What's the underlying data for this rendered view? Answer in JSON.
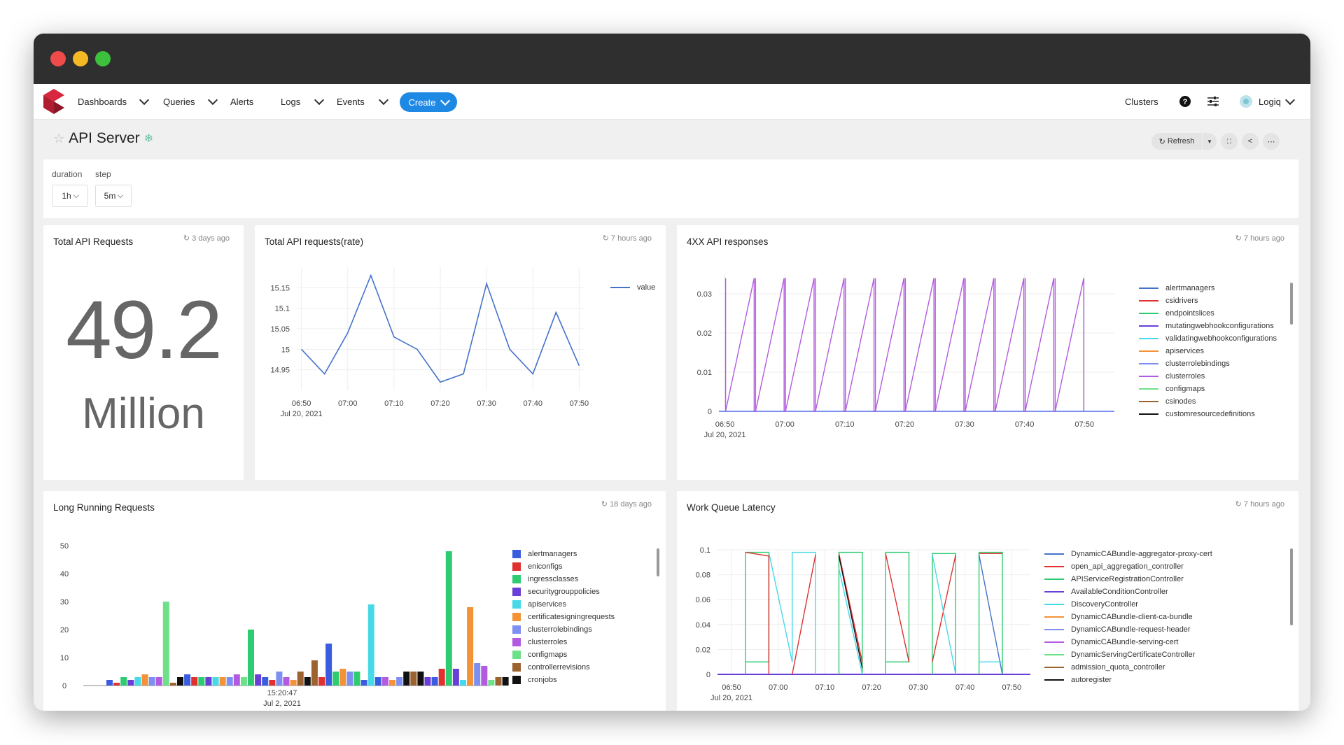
{
  "nav": {
    "items": [
      "Dashboards",
      "Queries",
      "Alerts",
      "Logs",
      "Events"
    ],
    "create_label": "Create",
    "clusters_label": "Clusters",
    "user_label": "Logiq"
  },
  "dashboard": {
    "title": "API Server",
    "refresh_label": "Refresh"
  },
  "params": {
    "duration_label": "duration",
    "duration_value": "1h",
    "step_label": "step",
    "step_value": "5m"
  },
  "panels": {
    "total_api_requests": {
      "title": "Total API Requests",
      "ago": "3 days ago",
      "value": "49.2",
      "unit": "Million"
    },
    "rate": {
      "title": "Total API requests(rate)",
      "ago": "7 hours ago"
    },
    "four_xx": {
      "title": "4XX API responses",
      "ago": "7 hours ago"
    },
    "long_running": {
      "title": "Long Running Requests",
      "ago": "18 days ago"
    },
    "work_queue": {
      "title": "Work Queue Latency",
      "ago": "7 hours ago"
    }
  },
  "colors": {
    "accent": "#1e88e5",
    "brand": "#d7263d",
    "rate_line": "#4472ca",
    "four_xx_line": "#e377e0",
    "title_bar": "#2f2f2f"
  },
  "chart_data": [
    {
      "type": "line",
      "title": "Total API requests(rate)",
      "x": [
        "06:50",
        "06:55",
        "07:00",
        "07:05",
        "07:10",
        "07:15",
        "07:20",
        "07:25",
        "07:30",
        "07:35",
        "07:40",
        "07:45",
        "07:50"
      ],
      "x_tick_labels": [
        "06:50",
        "07:00",
        "07:10",
        "07:20",
        "07:30",
        "07:40",
        "07:50"
      ],
      "x_sub_label": "Jul 20, 2021",
      "series": [
        {
          "name": "value",
          "values": [
            15.0,
            14.94,
            15.04,
            15.18,
            15.03,
            15.0,
            14.92,
            14.94,
            15.16,
            15.0,
            14.94,
            15.09,
            14.96
          ]
        }
      ],
      "y_ticks": [
        "14.95",
        "15",
        "15.05",
        "15.1",
        "15.15"
      ],
      "ylim": [
        14.9,
        15.2
      ],
      "legend": "top-right",
      "grid": true
    },
    {
      "type": "line",
      "title": "4XX API responses",
      "x_tick_labels": [
        "06:50",
        "07:00",
        "07:10",
        "07:20",
        "07:30",
        "07:40",
        "07:50"
      ],
      "x_sub_label": "Jul 20, 2021",
      "y_ticks": [
        "0",
        "0.01",
        "0.02",
        "0.03"
      ],
      "ylim": [
        0,
        0.035
      ],
      "series_names": [
        "alertmanagers",
        "csidrivers",
        "endpointslices",
        "mutatingwebhookconfigurations",
        "validatingwebhookconfigurations",
        "apiservices",
        "clusterrolebindings",
        "clusterroles",
        "configmaps",
        "csinodes",
        "customresourcedefinitions"
      ],
      "series_colors": [
        "#4472ca",
        "#e03030",
        "#2ecc71",
        "#6a3fd8",
        "#48d9e8",
        "#f39237",
        "#7d8ff0",
        "#b35be0",
        "#6ee08a",
        "#9c6230",
        "#111111"
      ],
      "pulse_series": "clusterroles",
      "pulse_peak": 0.034,
      "pulse_times": [
        "06:50",
        "06:55",
        "07:00",
        "07:05",
        "07:10",
        "07:15",
        "07:20",
        "07:25",
        "07:30",
        "07:35",
        "07:40",
        "07:45",
        "07:50"
      ],
      "legend": "right",
      "grid": true
    },
    {
      "type": "bar",
      "title": "Long Running Requests",
      "x_tick_labels": [
        "15:20:47"
      ],
      "x_sub_label": "Jul 2, 2021",
      "y_ticks": [
        "0",
        "10",
        "20",
        "30",
        "40",
        "50"
      ],
      "ylim": [
        0,
        50
      ],
      "series_names": [
        "alertmanagers",
        "eniconfigs",
        "ingressclasses",
        "securitygrouppolicies",
        "apiservices",
        "certificatesigningrequests",
        "clusterrolebindings",
        "clusterroles",
        "configmaps",
        "controllerrevisions",
        "cronjobs"
      ],
      "series_colors": [
        "#3a5de0",
        "#e03030",
        "#2ecc71",
        "#6a3fd8",
        "#48d9e8",
        "#f39237",
        "#7d8ff0",
        "#b35be0",
        "#6ee08a",
        "#9c6230",
        "#111111"
      ],
      "bars": [
        {
          "s": 0,
          "v": 2
        },
        {
          "s": 1,
          "v": 1
        },
        {
          "s": 2,
          "v": 3
        },
        {
          "s": 3,
          "v": 2
        },
        {
          "s": 4,
          "v": 3
        },
        {
          "s": 5,
          "v": 4
        },
        {
          "s": 6,
          "v": 3
        },
        {
          "s": 7,
          "v": 3
        },
        {
          "s": 8,
          "v": 30
        },
        {
          "s": 9,
          "v": 1
        },
        {
          "s": 10,
          "v": 3
        },
        {
          "s": 0,
          "v": 4
        },
        {
          "s": 1,
          "v": 3
        },
        {
          "s": 2,
          "v": 3
        },
        {
          "s": 3,
          "v": 3
        },
        {
          "s": 4,
          "v": 3
        },
        {
          "s": 5,
          "v": 3
        },
        {
          "s": 6,
          "v": 3
        },
        {
          "s": 7,
          "v": 4
        },
        {
          "s": 8,
          "v": 3
        },
        {
          "s": 2,
          "v": 20
        },
        {
          "s": 3,
          "v": 4
        },
        {
          "s": 0,
          "v": 3
        },
        {
          "s": 1,
          "v": 2
        },
        {
          "s": 6,
          "v": 5
        },
        {
          "s": 7,
          "v": 3
        },
        {
          "s": 5,
          "v": 2
        },
        {
          "s": 9,
          "v": 5
        },
        {
          "s": 10,
          "v": 3
        },
        {
          "s": 9,
          "v": 9
        },
        {
          "s": 1,
          "v": 3
        },
        {
          "s": 0,
          "v": 15
        },
        {
          "s": 2,
          "v": 5
        },
        {
          "s": 5,
          "v": 6
        },
        {
          "s": 6,
          "v": 5
        },
        {
          "s": 2,
          "v": 5
        },
        {
          "s": 0,
          "v": 2
        },
        {
          "s": 4,
          "v": 29
        },
        {
          "s": 0,
          "v": 3
        },
        {
          "s": 7,
          "v": 3
        },
        {
          "s": 5,
          "v": 2
        },
        {
          "s": 6,
          "v": 3
        },
        {
          "s": 10,
          "v": 5
        },
        {
          "s": 9,
          "v": 5
        },
        {
          "s": 10,
          "v": 5
        },
        {
          "s": 3,
          "v": 3
        },
        {
          "s": 0,
          "v": 3
        },
        {
          "s": 1,
          "v": 6
        },
        {
          "s": 2,
          "v": 48
        },
        {
          "s": 3,
          "v": 6
        },
        {
          "s": 4,
          "v": 2
        },
        {
          "s": 5,
          "v": 28
        },
        {
          "s": 6,
          "v": 8
        },
        {
          "s": 7,
          "v": 7
        },
        {
          "s": 8,
          "v": 2
        },
        {
          "s": 9,
          "v": 3
        },
        {
          "s": 10,
          "v": 3
        }
      ],
      "legend": "right",
      "grid": false
    },
    {
      "type": "line",
      "title": "Work Queue Latency",
      "x_tick_labels": [
        "06:50",
        "07:00",
        "07:10",
        "07:20",
        "07:30",
        "07:40",
        "07:50"
      ],
      "x_sub_label": "Jul 20, 2021",
      "y_ticks": [
        "0",
        "0.02",
        "0.04",
        "0.06",
        "0.08",
        "0.1"
      ],
      "ylim": [
        0,
        0.1
      ],
      "series_names": [
        "DynamicCABundle-aggregator-proxy-cert",
        "open_api_aggregation_controller",
        "APIServiceRegistrationController",
        "AvailableConditionController",
        "DiscoveryController",
        "DynamicCABundle-client-ca-bundle",
        "DynamicCABundle-request-header",
        "DynamicCABundle-serving-cert",
        "DynamicServingCertificateController",
        "admission_quota_controller",
        "autoregister"
      ],
      "series_colors": [
        "#4472ca",
        "#e03030",
        "#2ecc71",
        "#6a3fd8",
        "#48d9e8",
        "#f39237",
        "#7d8ff0",
        "#b35be0",
        "#6ee08a",
        "#9c6230",
        "#111111"
      ],
      "segments": [
        {
          "series": 2,
          "points": [
            [
              "06:53",
              0.0
            ],
            [
              "06:53",
              0.098
            ],
            [
              "06:58",
              0.098
            ],
            [
              "06:58",
              0.01
            ],
            [
              "06:53",
              0.01
            ]
          ]
        },
        {
          "series": 1,
          "points": [
            [
              "06:53",
              0.098
            ],
            [
              "06:58",
              0.095
            ],
            [
              "06:58",
              0.0
            ]
          ]
        },
        {
          "series": 4,
          "points": [
            [
              "06:58",
              0.098
            ],
            [
              "07:03",
              0.01
            ],
            [
              "07:03",
              0.098
            ],
            [
              "07:08",
              0.098
            ],
            [
              "07:08",
              0.0
            ]
          ]
        },
        {
          "series": 1,
          "points": [
            [
              "07:03",
              0.0
            ],
            [
              "07:08",
              0.096
            ]
          ]
        },
        {
          "series": 2,
          "points": [
            [
              "07:13",
              0.0
            ],
            [
              "07:13",
              0.098
            ],
            [
              "07:18",
              0.098
            ],
            [
              "07:18",
              0.0
            ]
          ]
        },
        {
          "series": 1,
          "points": [
            [
              "07:13",
              0.097
            ],
            [
              "07:18",
              0.01
            ]
          ]
        },
        {
          "series": 10,
          "points": [
            [
              "07:13",
              0.095
            ],
            [
              "07:18",
              0.005
            ]
          ]
        },
        {
          "series": 4,
          "points": [
            [
              "07:13",
              0.085
            ],
            [
              "07:18",
              0.0
            ]
          ]
        },
        {
          "series": 2,
          "points": [
            [
              "07:23",
              0.0
            ],
            [
              "07:23",
              0.098
            ],
            [
              "07:28",
              0.098
            ],
            [
              "07:28",
              0.01
            ],
            [
              "07:23",
              0.01
            ]
          ]
        },
        {
          "series": 1,
          "points": [
            [
              "07:23",
              0.097
            ],
            [
              "07:28",
              0.01
            ]
          ]
        },
        {
          "series": 2,
          "points": [
            [
              "07:33",
              0.0
            ],
            [
              "07:33",
              0.097
            ],
            [
              "07:38",
              0.097
            ],
            [
              "07:38",
              0.0
            ]
          ]
        },
        {
          "series": 1,
          "points": [
            [
              "07:33",
              0.01
            ],
            [
              "07:38",
              0.096
            ]
          ]
        },
        {
          "series": 4,
          "points": [
            [
              "07:33",
              0.096
            ],
            [
              "07:38",
              0.0
            ]
          ]
        },
        {
          "series": 2,
          "points": [
            [
              "07:43",
              0.0
            ],
            [
              "07:43",
              0.098
            ],
            [
              "07:48",
              0.098
            ],
            [
              "07:48",
              0.0
            ]
          ]
        },
        {
          "series": 1,
          "points": [
            [
              "07:43",
              0.097
            ],
            [
              "07:48",
              0.097
            ]
          ]
        },
        {
          "series": 0,
          "points": [
            [
              "07:43",
              0.096
            ],
            [
              "07:48",
              0.0
            ]
          ]
        },
        {
          "series": 4,
          "points": [
            [
              "07:43",
              0.01
            ],
            [
              "07:48",
              0.01
            ]
          ]
        }
      ],
      "legend": "right",
      "grid": true
    }
  ]
}
